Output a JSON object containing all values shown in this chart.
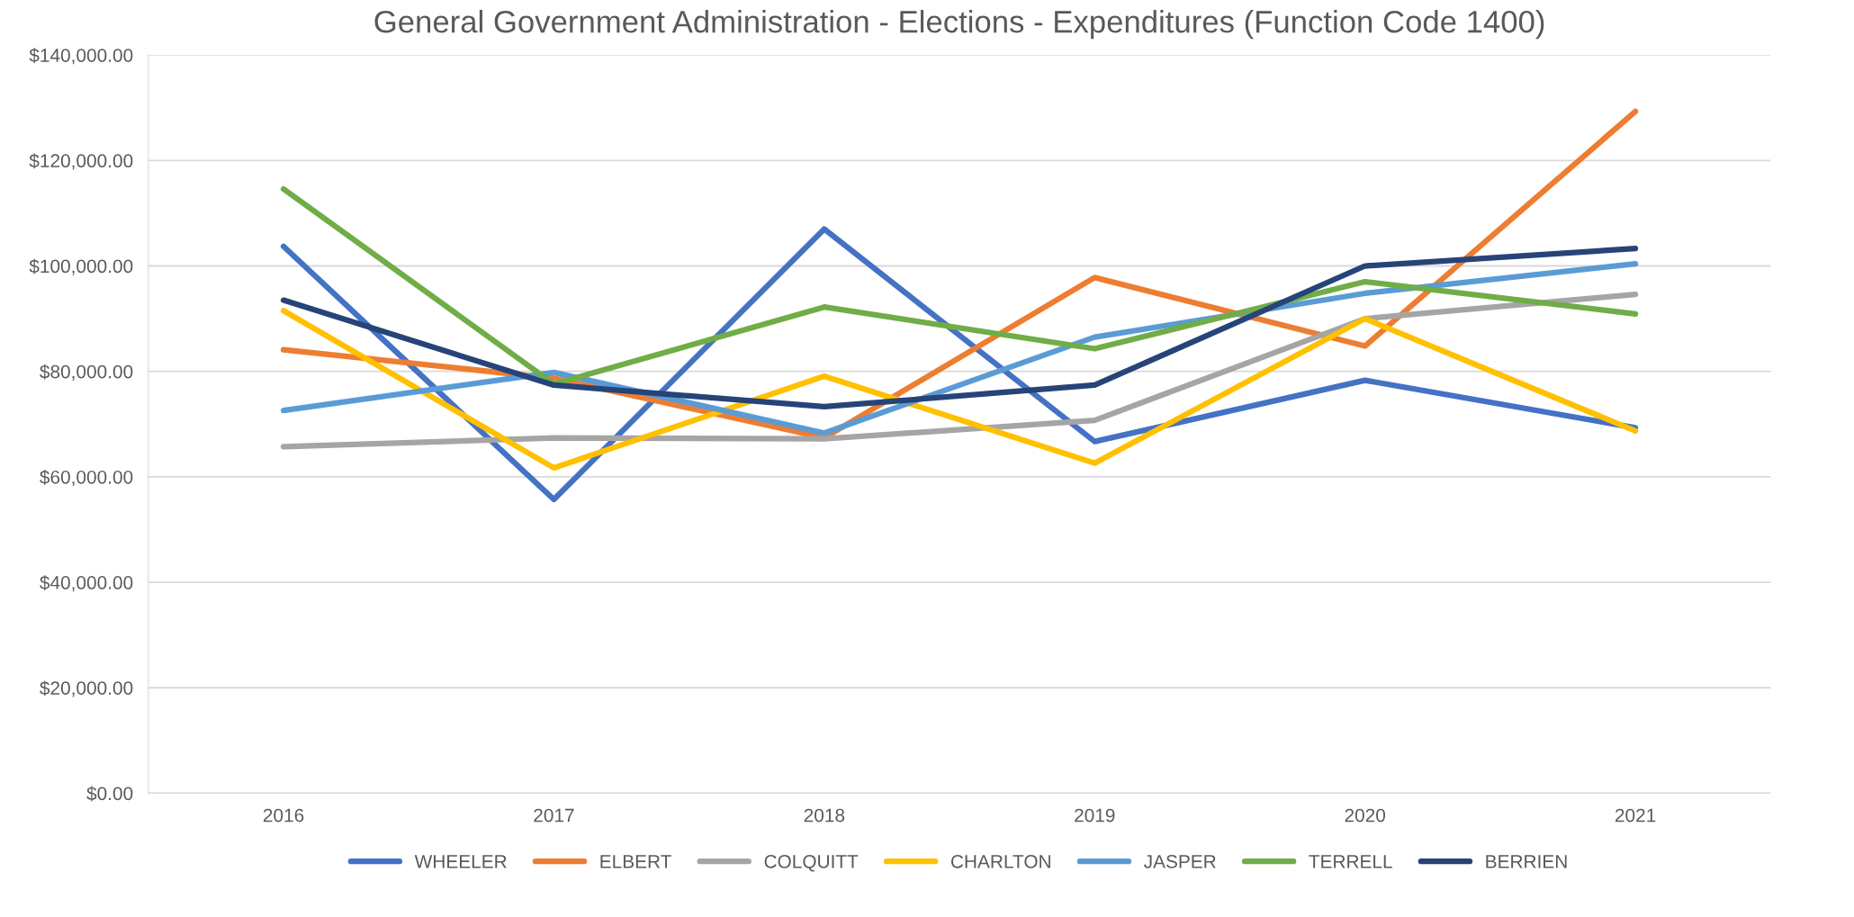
{
  "chart_data": {
    "type": "line",
    "title": "General Government Administration - Elections - Expenditures (Function Code 1400)",
    "categories": [
      "2016",
      "2017",
      "2018",
      "2019",
      "2020",
      "2021"
    ],
    "series": [
      {
        "name": "WHEELER",
        "color": "#4472c4",
        "values": [
          103700,
          55700,
          107000,
          66700,
          78300,
          69300
        ]
      },
      {
        "name": "ELBERT",
        "color": "#ed7d31",
        "values": [
          84100,
          78700,
          67400,
          97800,
          84800,
          129300
        ]
      },
      {
        "name": "COLQUITT",
        "color": "#a5a5a5",
        "values": [
          65700,
          67400,
          67200,
          70700,
          90000,
          94600
        ]
      },
      {
        "name": "CHARLTON",
        "color": "#ffc000",
        "values": [
          91500,
          61700,
          79100,
          62600,
          90000,
          68700
        ]
      },
      {
        "name": "JASPER",
        "color": "#5b9bd5",
        "values": [
          72600,
          79800,
          68300,
          86500,
          94800,
          100400
        ]
      },
      {
        "name": "TERRELL",
        "color": "#70ad47",
        "values": [
          114600,
          77600,
          92200,
          84300,
          97000,
          90900
        ]
      },
      {
        "name": "BERRIEN",
        "color": "#264478",
        "values": [
          93500,
          77400,
          73300,
          77400,
          100000,
          103300
        ]
      }
    ],
    "ylim": [
      0,
      140000
    ],
    "yticks": [
      {
        "value": 0,
        "label": "$0.00"
      },
      {
        "value": 20000,
        "label": "$20,000.00"
      },
      {
        "value": 40000,
        "label": "$40,000.00"
      },
      {
        "value": 60000,
        "label": "$60,000.00"
      },
      {
        "value": 80000,
        "label": "$80,000.00"
      },
      {
        "value": 100000,
        "label": "$100,000.00"
      },
      {
        "value": 120000,
        "label": "$120,000.00"
      },
      {
        "value": 140000,
        "label": "$140,000.00"
      }
    ],
    "grid": "y",
    "legend": "bottom",
    "marker": "none",
    "line_style": "solid"
  }
}
